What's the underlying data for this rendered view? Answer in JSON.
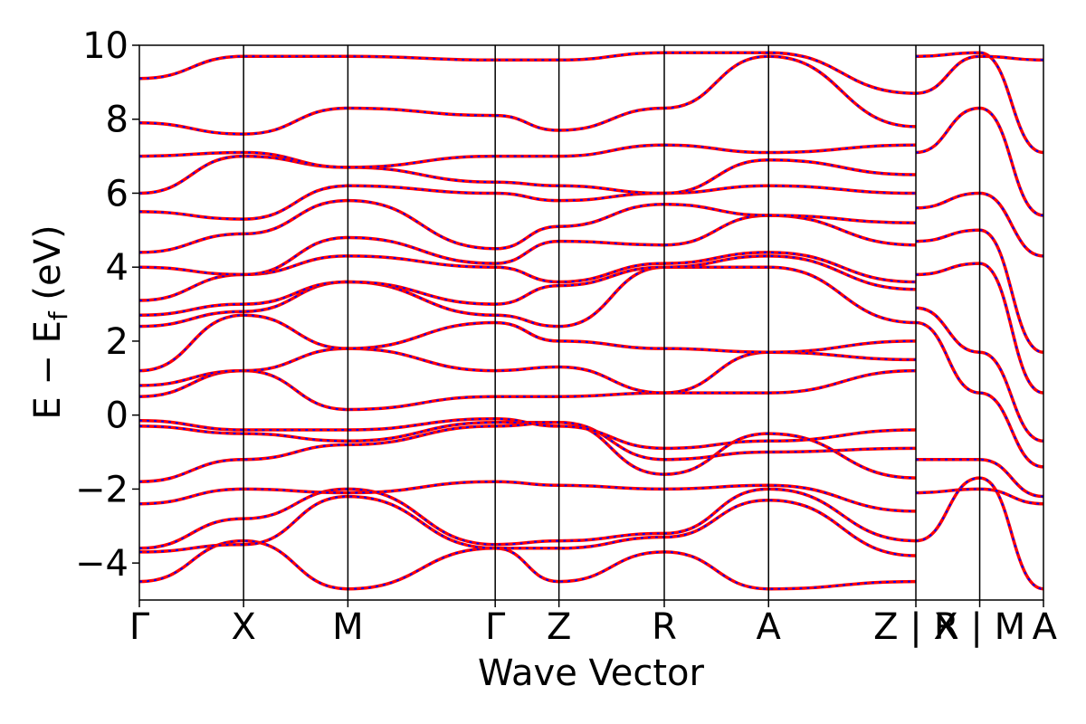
{
  "chart_data": {
    "type": "line",
    "title": "",
    "xlabel": "Wave Vector",
    "ylabel": "E − E",
    "ylabel_subscript": "f",
    "ylabel_unit": " (eV)",
    "ylim": [
      -5,
      10
    ],
    "yticks": [
      -4,
      -2,
      0,
      2,
      4,
      6,
      8,
      10
    ],
    "ytick_labels": [
      "−4",
      "−2",
      "0",
      "2",
      "4",
      "6",
      "8",
      "10"
    ],
    "kpath_boundaries": [
      0,
      0.1548,
      0.3097,
      0.5285,
      0.6232,
      0.7796,
      0.9345,
      1.1533,
      1.2481,
      1.3428
    ],
    "kpath_labels": [
      "Γ",
      "X",
      "M",
      "Γ",
      "Z",
      "R",
      "A",
      "Z | X",
      "R | M",
      "A"
    ],
    "grid": false,
    "legend": "none",
    "line_colors": {
      "primary": "#ff0000",
      "overlay": "#0000ff"
    },
    "series": [
      {
        "x": [
          0,
          0.1548,
          0.3097,
          0.5285,
          0.6232,
          0.7796,
          0.9345,
          1.1533
        ],
        "values": [
          -4.5,
          -3.4,
          -4.7,
          -3.6,
          -4.5,
          -3.7,
          -4.7,
          -4.5
        ]
      },
      {
        "x": [
          0,
          0.1548,
          0.3097,
          0.5285,
          0.6232,
          0.7796,
          0.9345,
          1.1533
        ],
        "values": [
          -3.7,
          -3.5,
          -2.2,
          -3.6,
          -3.6,
          -3.3,
          -2.3,
          -3.8
        ]
      },
      {
        "x": [
          0,
          0.1548,
          0.3097,
          0.5285,
          0.6232,
          0.7796,
          0.9345,
          1.1533
        ],
        "values": [
          -3.6,
          -2.8,
          -2.0,
          -3.5,
          -3.4,
          -3.2,
          -2.0,
          -3.4
        ]
      },
      {
        "x": [
          0,
          0.1548,
          0.3097,
          0.5285,
          0.6232,
          0.7796,
          0.9345,
          1.1533
        ],
        "values": [
          -2.4,
          -2.0,
          -2.1,
          -1.8,
          -1.9,
          -2.0,
          -1.9,
          -2.6
        ]
      },
      {
        "x": [
          0,
          0.1548,
          0.3097,
          0.5285,
          0.6232,
          0.7796,
          0.9345,
          1.1533
        ],
        "values": [
          -1.8,
          -1.2,
          -0.8,
          -0.3,
          -0.2,
          -1.6,
          -0.5,
          -1.7
        ]
      },
      {
        "x": [
          0,
          0.1548,
          0.3097,
          0.5285,
          0.6232,
          0.7796,
          0.9345,
          1.1533
        ],
        "values": [
          -0.3,
          -0.5,
          -0.7,
          -0.2,
          -0.2,
          -1.2,
          -1.0,
          -0.9
        ]
      },
      {
        "x": [
          0,
          0.1548,
          0.3097,
          0.5285,
          0.6232,
          0.7796,
          0.9345,
          1.1533
        ],
        "values": [
          -0.15,
          -0.4,
          -0.4,
          -0.1,
          -0.3,
          -0.9,
          -0.7,
          -0.4
        ]
      },
      {
        "x": [
          0,
          0.1548,
          0.3097,
          0.5285,
          0.6232,
          0.7796,
          0.9345,
          1.1533
        ],
        "values": [
          0.5,
          1.2,
          0.15,
          0.5,
          0.5,
          0.6,
          0.6,
          1.2
        ]
      },
      {
        "x": [
          0,
          0.1548,
          0.3097,
          0.5285,
          0.6232,
          0.7796,
          0.9345,
          1.1533
        ],
        "values": [
          0.8,
          1.2,
          1.8,
          1.2,
          1.3,
          0.6,
          1.7,
          1.5
        ]
      },
      {
        "x": [
          0,
          0.1548,
          0.3097,
          0.5285,
          0.6232,
          0.7796,
          0.9345,
          1.1533
        ],
        "values": [
          1.2,
          2.7,
          1.8,
          2.5,
          2.0,
          1.8,
          1.7,
          2.0
        ]
      },
      {
        "x": [
          0,
          0.1548,
          0.3097,
          0.5285,
          0.6232,
          0.7796,
          0.9345,
          1.1533
        ],
        "values": [
          2.4,
          2.8,
          3.6,
          2.7,
          2.4,
          4.0,
          4.0,
          2.5
        ]
      },
      {
        "x": [
          0,
          0.1548,
          0.3097,
          0.5285,
          0.6232,
          0.7796,
          0.9345,
          1.1533
        ],
        "values": [
          2.7,
          3.0,
          3.6,
          3.0,
          3.5,
          4.0,
          4.3,
          3.4
        ]
      },
      {
        "x": [
          0,
          0.1548,
          0.3097,
          0.5285,
          0.6232,
          0.7796,
          0.9345,
          1.1533
        ],
        "values": [
          3.1,
          3.8,
          4.3,
          4.0,
          3.6,
          4.1,
          4.4,
          3.6
        ]
      },
      {
        "x": [
          0,
          0.1548,
          0.3097,
          0.5285,
          0.6232,
          0.7796,
          0.9345,
          1.1533
        ],
        "values": [
          4.0,
          3.8,
          4.8,
          4.1,
          4.7,
          4.6,
          5.4,
          4.6
        ]
      },
      {
        "x": [
          0,
          0.1548,
          0.3097,
          0.5285,
          0.6232,
          0.7796,
          0.9345,
          1.1533
        ],
        "values": [
          4.4,
          4.9,
          5.8,
          4.5,
          5.1,
          5.7,
          5.4,
          5.2
        ]
      },
      {
        "x": [
          0,
          0.1548,
          0.3097,
          0.5285,
          0.6232,
          0.7796,
          0.9345,
          1.1533
        ],
        "values": [
          5.5,
          5.3,
          6.2,
          6.0,
          5.8,
          6.0,
          6.2,
          6.0
        ]
      },
      {
        "x": [
          0,
          0.1548,
          0.3097,
          0.5285,
          0.6232,
          0.7796,
          0.9345,
          1.1533
        ],
        "values": [
          6.0,
          7.0,
          6.7,
          6.3,
          6.2,
          6.0,
          6.9,
          6.5
        ]
      },
      {
        "x": [
          0,
          0.1548,
          0.3097,
          0.5285,
          0.6232,
          0.7796,
          0.9345,
          1.1533
        ],
        "values": [
          7.0,
          7.1,
          6.7,
          7.0,
          7.0,
          7.3,
          7.1,
          7.3
        ]
      },
      {
        "x": [
          0,
          0.1548,
          0.3097,
          0.5285,
          0.6232,
          0.7796,
          0.9345,
          1.1533
        ],
        "values": [
          7.9,
          7.6,
          8.3,
          8.1,
          7.7,
          8.3,
          9.7,
          7.8
        ]
      },
      {
        "x": [
          0,
          0.1548,
          0.3097,
          0.5285,
          0.6232,
          0.7796,
          0.9345,
          1.1533
        ],
        "values": [
          9.1,
          9.7,
          9.7,
          9.6,
          9.6,
          9.8,
          9.8,
          8.7
        ]
      },
      {
        "x": [
          1.1533,
          1.2481,
          1.3428
        ],
        "values": [
          -3.4,
          -1.7,
          -4.7
        ]
      },
      {
        "x": [
          1.1533,
          1.2481,
          1.3428
        ],
        "values": [
          -2.1,
          -2.0,
          -2.4
        ]
      },
      {
        "x": [
          1.1533,
          1.2481,
          1.3428
        ],
        "values": [
          -1.2,
          -1.2,
          -2.2
        ]
      },
      {
        "x": [
          1.1533,
          1.2481,
          1.3428
        ],
        "values": [
          2.5,
          0.6,
          -1.4
        ]
      },
      {
        "x": [
          1.1533,
          1.2481,
          1.3428
        ],
        "values": [
          2.9,
          1.7,
          -0.7
        ]
      },
      {
        "x": [
          1.1533,
          1.2481,
          1.3428
        ],
        "values": [
          3.8,
          4.1,
          0.6
        ]
      },
      {
        "x": [
          1.1533,
          1.2481,
          1.3428
        ],
        "values": [
          4.7,
          5.0,
          1.7
        ]
      },
      {
        "x": [
          1.1533,
          1.2481,
          1.3428
        ],
        "values": [
          5.6,
          6.0,
          4.3
        ]
      },
      {
        "x": [
          1.1533,
          1.2481,
          1.3428
        ],
        "values": [
          7.1,
          8.3,
          5.4
        ]
      },
      {
        "x": [
          1.1533,
          1.2481,
          1.3428
        ],
        "values": [
          9.7,
          9.8,
          7.1
        ]
      },
      {
        "x": [
          1.1533,
          1.2481,
          1.3428
        ],
        "values": [
          8.7,
          9.7,
          9.6
        ]
      }
    ]
  }
}
